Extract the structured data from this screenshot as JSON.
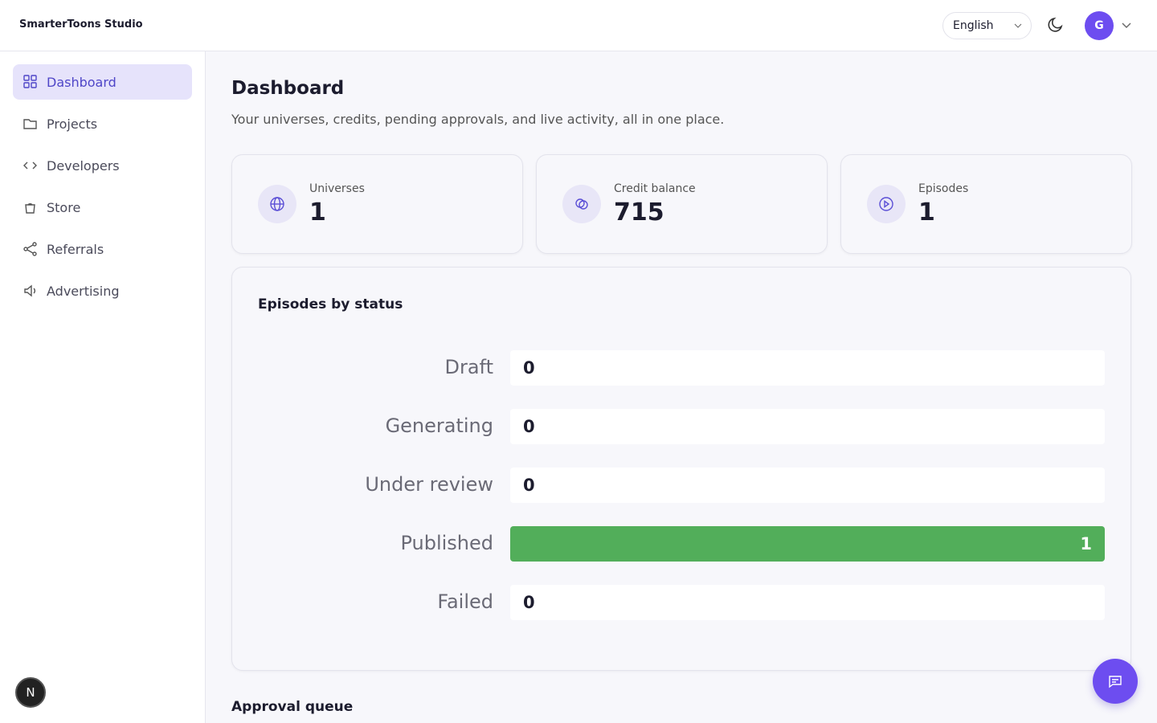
{
  "header": {
    "brand": "SmarterToons Studio",
    "language": "English",
    "avatar": "G"
  },
  "sidebar": {
    "items": [
      "Dashboard",
      "Projects",
      "Developers",
      "Store",
      "Referrals",
      "Advertising"
    ],
    "badge": "N"
  },
  "page": {
    "title": "Dashboard",
    "subtitle": "Your universes, credits, pending approvals, and live activity, all in one place."
  },
  "stats": [
    {
      "label": "Universes",
      "value": 1
    },
    {
      "label": "Credit balance",
      "value": 715
    },
    {
      "label": "Episodes",
      "value": 1
    }
  ],
  "chart_data": {
    "type": "bar",
    "orientation": "horizontal",
    "title": "Episodes by status",
    "categories": [
      "Draft",
      "Generating",
      "Under review",
      "Published",
      "Failed"
    ],
    "values": [
      0,
      0,
      0,
      1,
      0
    ],
    "color": "#52ae5a",
    "xlim": [
      0,
      1
    ]
  },
  "section": {
    "title": "Approval queue"
  }
}
